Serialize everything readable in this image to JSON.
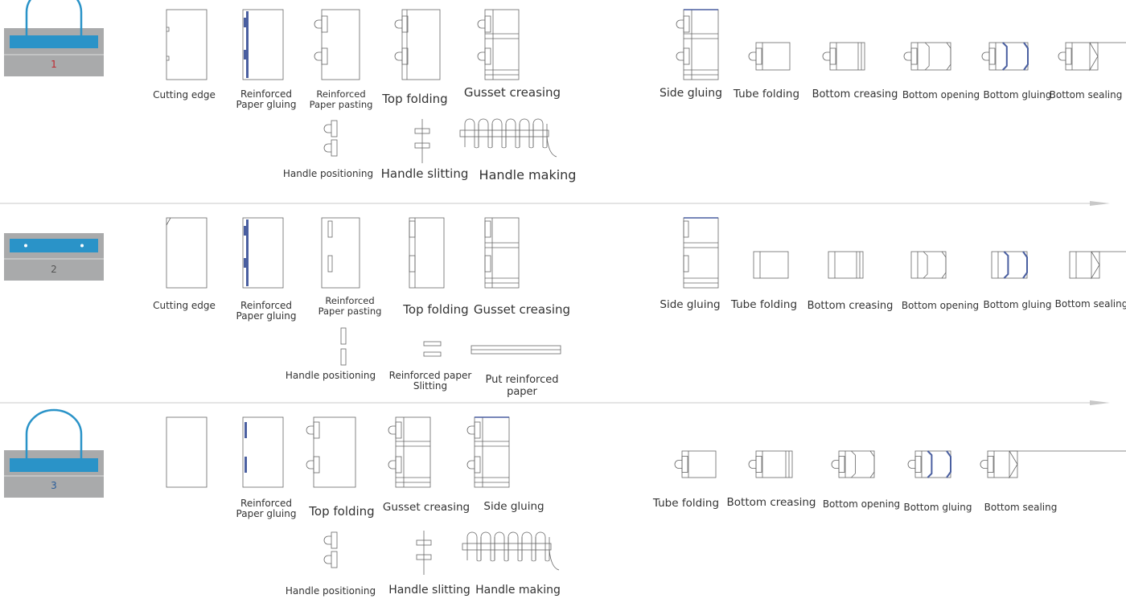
{
  "colors": {
    "accent_blue": "#2a93c8",
    "thumb_grey": "#a9aaab",
    "line": "#666666",
    "glue": "#4a5fa0",
    "arrow": "#c8c8c8",
    "num1": "#c0272d",
    "num3": "#2a5d9a"
  },
  "rows": [
    {
      "number": "1",
      "steps": [
        "Cutting edge",
        "Reinforced Paper gluing",
        "Reinforced Paper pasting",
        "Top folding",
        "Gusset creasing",
        "Side gluing",
        "Tube folding",
        "Bottom creasing",
        "Bottom opening",
        "Bottom gluing",
        "Bottom sealing"
      ],
      "sub_steps": [
        "Handle positioning",
        "Handle slitting",
        "Handle making"
      ]
    },
    {
      "number": "2",
      "steps": [
        "Cutting edge",
        "Reinforced Paper gluing",
        "Reinforced Paper pasting",
        "Top folding",
        "Gusset creasing",
        "Side gluing",
        "Tube folding",
        "Bottom creasing",
        "Bottom opening",
        "Bottom gluing",
        "Bottom sealing"
      ],
      "sub_steps": [
        "Handle positioning",
        "Reinforced paper Slitting",
        "Put reinforced paper"
      ]
    },
    {
      "number": "3",
      "steps": [
        "Reinforced Paper gluing",
        "Top folding",
        "Gusset creasing",
        "Side gluing",
        "Tube folding",
        "Bottom creasing",
        "Bottom opening",
        "Bottom gluing",
        "Bottom sealing"
      ],
      "sub_steps": [
        "Handle positioning",
        "Handle slitting",
        "Handle making"
      ]
    }
  ]
}
